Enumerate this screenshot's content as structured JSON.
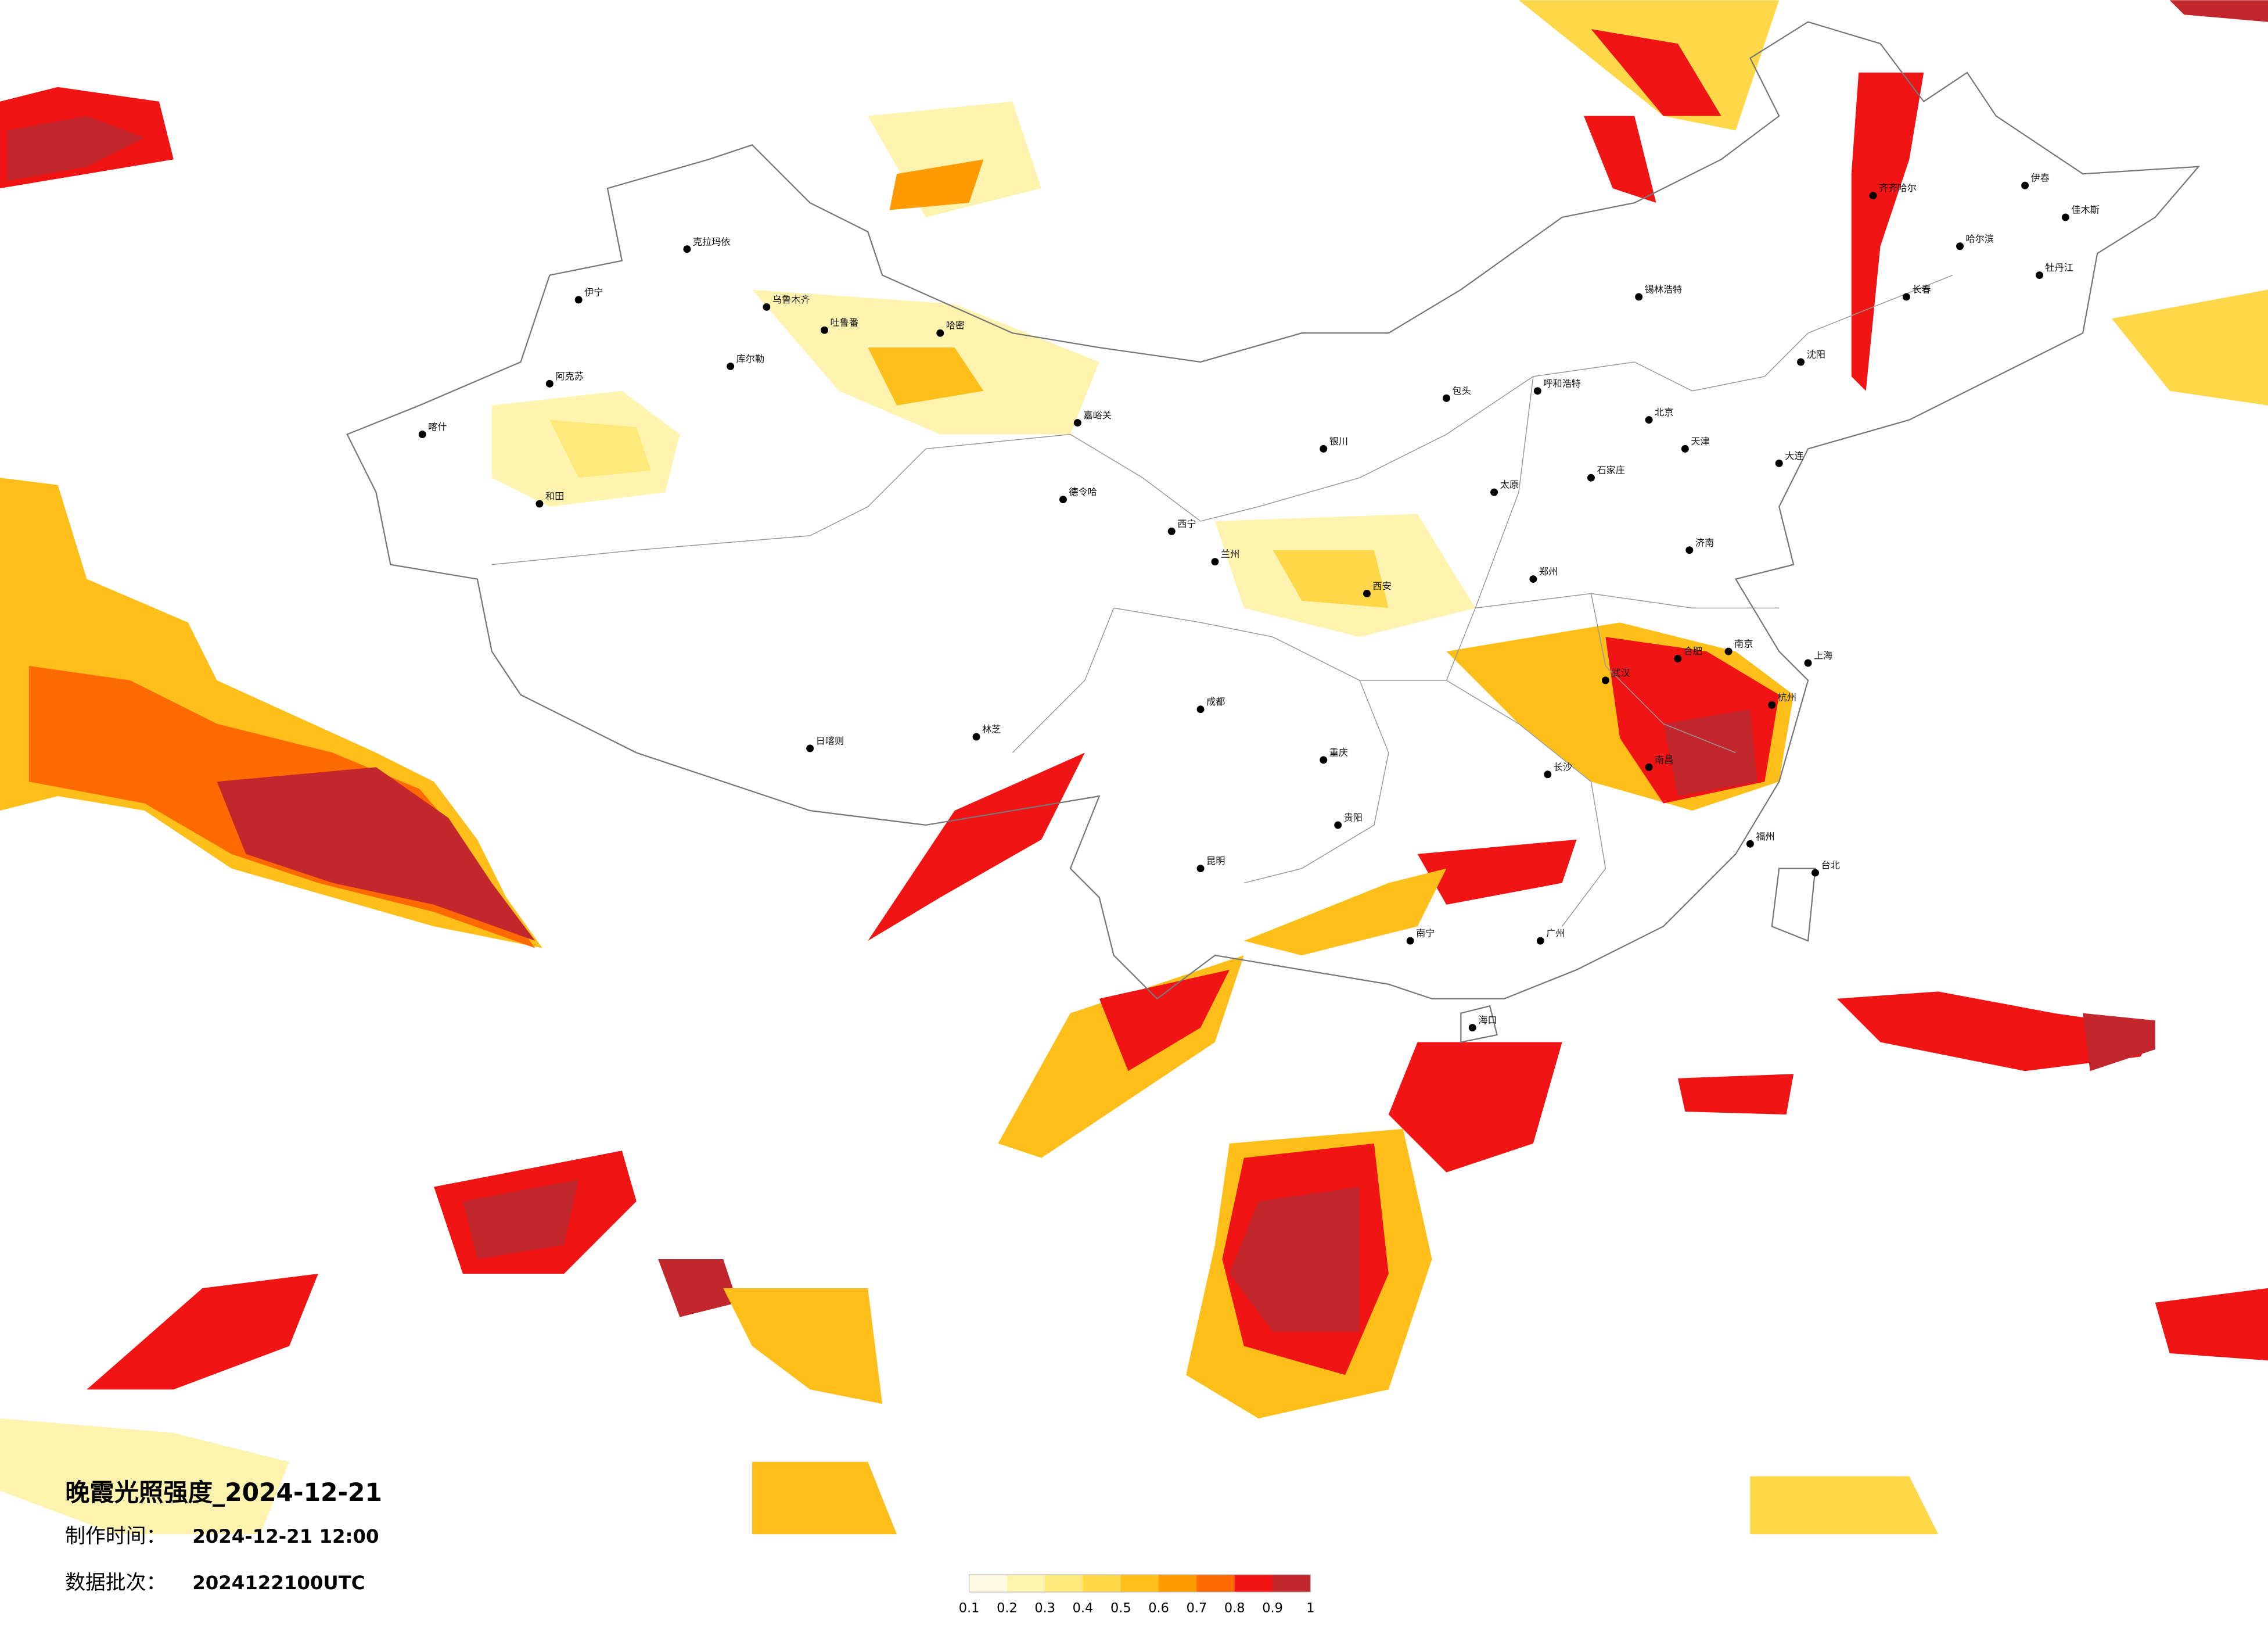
{
  "title": "晚霞光照强度_2024-12-21",
  "production_time": {
    "label": "制作时间：",
    "value": "2024-12-21 12:00"
  },
  "data_batch": {
    "label": "数据批次：",
    "value": "2024122100UTC"
  },
  "legend": {
    "colors": [
      "#fffbe3",
      "#fff3b0",
      "#ffe97a",
      "#ffd84a",
      "#ffbf1a",
      "#ff9a00",
      "#ff6a00",
      "#f01414",
      "#c1272d"
    ],
    "ticks": [
      0.1,
      0.2,
      0.3,
      0.4,
      0.5,
      0.6,
      0.7,
      0.8,
      0.9,
      1
    ]
  },
  "cities": [
    "克拉玛依",
    "伊宁",
    "阿克苏",
    "喀什",
    "和田",
    "库尔勒",
    "吐鲁番",
    "乌鲁木齐",
    "哈密",
    "德令哈",
    "嘉峪关",
    "西宁",
    "兰州",
    "银川",
    "呼和浩特",
    "包头",
    "锡林浩特",
    "太原",
    "石家庄",
    "北京",
    "天津",
    "沈阳",
    "长春",
    "哈尔滨",
    "齐齐哈尔",
    "伊春",
    "佳木斯",
    "牡丹江",
    "济南",
    "郑州",
    "西安",
    "成都",
    "重庆",
    "武汉",
    "长沙",
    "南昌",
    "合肥",
    "南京",
    "上海",
    "杭州",
    "福州",
    "台北",
    "广州",
    "南宁",
    "海口",
    "昆明",
    "贵阳",
    "日喀则",
    "林芝",
    "大连"
  ]
}
